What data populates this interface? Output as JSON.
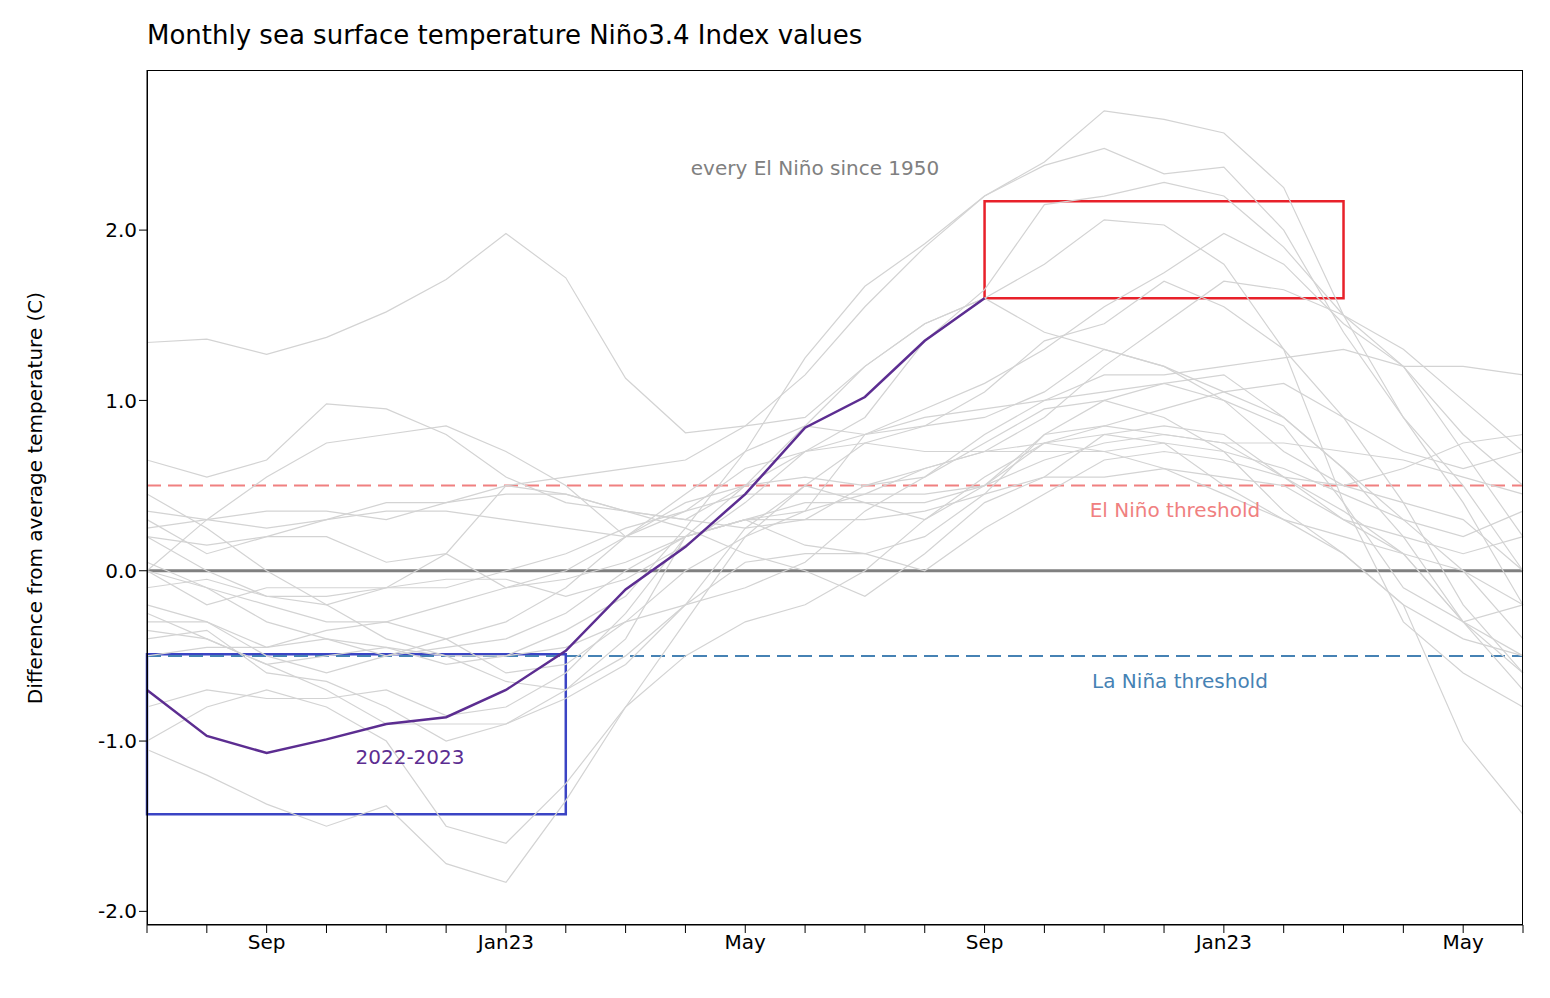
{
  "chart_data": {
    "type": "line",
    "title": "Monthly sea surface temperature Niño3.4 Index values",
    "y_label": "Difference from average temperature (C)",
    "categories": [
      null,
      null,
      "Sep",
      null,
      null,
      null,
      "Jan23",
      null,
      null,
      null,
      "May",
      null,
      null,
      null,
      "Sep",
      null,
      null,
      null,
      "Jan23",
      null,
      null,
      null,
      "May",
      null
    ],
    "ylim": [
      -2.08,
      2.94
    ],
    "yticks": [
      {
        "value": -2,
        "label": "-2.0"
      },
      {
        "value": -1,
        "label": "-1.0"
      },
      {
        "value": 0,
        "label": "0.0"
      },
      {
        "value": 1,
        "label": "1.0"
      },
      {
        "value": 2,
        "label": "2.0"
      }
    ],
    "annotations": [
      {
        "text": "every El Niño since 1950",
        "color": "#808080"
      }
    ],
    "reference_lines": [
      {
        "value": 0,
        "color": "#808080",
        "line_style": "solid"
      },
      {
        "value": 0.5,
        "label": "El Niño threshold",
        "color": "#f08080",
        "line_style": "dashed"
      },
      {
        "value": -0.5,
        "label": "La Niña threshold",
        "color": "#4682b4",
        "line_style": "dashed"
      }
    ],
    "boxes": [
      {
        "x": [
          0,
          7
        ],
        "y": [
          -1.43,
          -0.49
        ],
        "color": "#3b44c4"
      },
      {
        "x": [
          14,
          20
        ],
        "y": [
          1.6,
          2.17
        ],
        "color": "#e8212a"
      }
    ],
    "series": [
      {
        "color": "#d3d3d3",
        "values": [
          1.34,
          1.36,
          1.27,
          1.37,
          1.52,
          1.71,
          1.98,
          1.72,
          1.13,
          0.81,
          0.85,
          0.9,
          1.2,
          1.45,
          1.6,
          1.4,
          1.3,
          1.2,
          1.05,
          0.9,
          0.6,
          0.2,
          -0.3,
          -0.6
        ]
      },
      {
        "color": "#d3d3d3",
        "values": [
          -0.5,
          -0.45,
          -0.45,
          -0.4,
          -0.45,
          -0.5,
          -0.5,
          -0.35,
          -0.15,
          0.25,
          0.7,
          1.25,
          1.67,
          1.92,
          2.2,
          2.4,
          2.7,
          2.65,
          2.57,
          2.25,
          1.5,
          0.9,
          0.4,
          -0.2
        ]
      },
      {
        "color": "#d3d3d3",
        "values": [
          0.2,
          0.0,
          -0.15,
          -0.2,
          -0.1,
          0.1,
          0.5,
          0.55,
          0.6,
          0.65,
          0.85,
          1.15,
          1.55,
          1.9,
          2.2,
          2.38,
          2.48,
          2.33,
          2.37,
          2.0,
          1.4,
          0.9,
          0.5,
          0.0
        ]
      },
      {
        "color": "#d3d3d3",
        "values": [
          0.0,
          -0.2,
          -0.1,
          -0.1,
          -0.1,
          -0.1,
          0.0,
          0.1,
          0.25,
          0.35,
          0.6,
          0.7,
          0.9,
          1.35,
          1.65,
          2.15,
          2.2,
          2.28,
          2.2,
          1.9,
          1.5,
          1.2,
          0.7,
          0.2
        ]
      },
      {
        "color": "#d3d3d3",
        "values": [
          -0.4,
          -0.35,
          -0.6,
          -0.65,
          -0.8,
          -1.0,
          -0.9,
          -0.7,
          -0.4,
          0.2,
          0.5,
          0.85,
          1.2,
          1.45,
          1.6,
          1.8,
          2.06,
          2.03,
          1.8,
          1.3,
          0.4,
          -0.3,
          -0.6,
          -0.8
        ]
      },
      {
        "color": "#d3d3d3",
        "values": [
          -0.2,
          -0.3,
          -0.5,
          -0.6,
          -0.5,
          -0.4,
          -0.3,
          -0.1,
          0.2,
          0.45,
          0.7,
          0.85,
          0.8,
          0.95,
          1.1,
          1.3,
          1.55,
          1.75,
          1.98,
          1.8,
          1.45,
          1.2,
          0.8,
          0.5
        ]
      },
      {
        "color": "#d3d3d3",
        "values": [
          0.35,
          0.3,
          0.25,
          0.3,
          0.4,
          0.4,
          0.45,
          0.45,
          0.35,
          0.3,
          0.5,
          0.7,
          0.75,
          0.7,
          0.7,
          0.9,
          1.2,
          1.45,
          1.7,
          1.65,
          1.5,
          1.3,
          1.0,
          0.7
        ]
      },
      {
        "color": "#d3d3d3",
        "values": [
          -1.05,
          -1.2,
          -1.37,
          -1.5,
          -1.38,
          -1.72,
          -1.83,
          -1.35,
          -0.8,
          -0.3,
          0.2,
          0.5,
          0.75,
          0.85,
          1.05,
          1.35,
          1.45,
          1.7,
          1.55,
          1.3,
          0.9,
          0.4,
          -0.2,
          -0.6
        ]
      },
      {
        "color": "#d3d3d3",
        "values": [
          0.45,
          0.25,
          0.0,
          -0.2,
          -0.4,
          -0.5,
          -0.65,
          -0.7,
          -0.5,
          -0.2,
          0.25,
          0.5,
          0.4,
          0.3,
          0.5,
          0.75,
          0.85,
          0.95,
          1.05,
          1.1,
          0.9,
          0.7,
          0.6,
          0.7
        ]
      },
      {
        "color": "#d3d3d3",
        "values": [
          -0.1,
          -0.05,
          -0.15,
          -0.15,
          -0.1,
          -0.05,
          -0.05,
          -0.15,
          -0.05,
          0.15,
          0.4,
          0.7,
          0.8,
          0.85,
          0.9,
          1.05,
          1.3,
          1.2,
          1.0,
          0.85,
          0.4,
          -0.1,
          -0.3,
          -0.2
        ]
      },
      {
        "color": "#d3d3d3",
        "values": [
          -0.3,
          -0.3,
          -0.45,
          -0.35,
          -0.3,
          -0.4,
          -0.6,
          -0.55,
          -0.3,
          0.0,
          0.2,
          0.35,
          0.8,
          0.9,
          0.95,
          1.0,
          1.05,
          1.1,
          1.15,
          0.9,
          0.6,
          0.3,
          0.0,
          -0.4
        ]
      },
      {
        "color": "#d3d3d3",
        "values": [
          0.3,
          0.1,
          0.2,
          0.2,
          0.05,
          0.1,
          -0.1,
          0.0,
          0.2,
          0.4,
          0.5,
          0.55,
          0.5,
          0.55,
          0.75,
          0.95,
          1.0,
          0.9,
          0.7,
          0.35,
          0.1,
          -0.2,
          -0.4,
          -0.5
        ]
      },
      {
        "color": "#d3d3d3",
        "values": [
          -0.25,
          -0.4,
          -0.55,
          -0.5,
          -0.45,
          -0.55,
          -0.5,
          -0.45,
          -0.3,
          -0.2,
          -0.1,
          0.05,
          0.35,
          0.55,
          0.8,
          1.0,
          1.15,
          1.15,
          1.2,
          1.25,
          1.3,
          1.2,
          1.2,
          1.15
        ]
      },
      {
        "color": "#d3d3d3",
        "values": [
          0.2,
          0.15,
          0.2,
          0.3,
          0.35,
          0.35,
          0.3,
          0.25,
          0.2,
          0.35,
          0.45,
          0.45,
          0.45,
          0.45,
          0.5,
          0.8,
          1.0,
          1.1,
          1.0,
          0.7,
          0.5,
          0.4,
          0.3,
          0.0
        ]
      },
      {
        "color": "#d3d3d3",
        "values": [
          0.05,
          -0.1,
          -0.2,
          -0.3,
          -0.3,
          -0.2,
          -0.1,
          -0.05,
          0.05,
          0.2,
          0.3,
          0.3,
          0.5,
          0.6,
          0.7,
          0.7,
          0.7,
          0.75,
          0.7,
          0.6,
          0.45,
          0.3,
          0.2,
          0.35
        ]
      },
      {
        "color": "#d3d3d3",
        "values": [
          -1.0,
          -0.8,
          -0.7,
          -0.8,
          -1.0,
          -1.5,
          -1.6,
          -1.25,
          -0.8,
          -0.5,
          -0.3,
          -0.2,
          0.0,
          0.3,
          0.55,
          0.75,
          0.8,
          0.85,
          0.8,
          0.55,
          0.3,
          0.2,
          0.1,
          0.2
        ]
      },
      {
        "color": "#d3d3d3",
        "values": [
          0.0,
          0.3,
          0.55,
          0.75,
          0.8,
          0.85,
          0.7,
          0.5,
          0.2,
          0.2,
          0.3,
          0.4,
          0.4,
          0.4,
          0.5,
          0.65,
          0.75,
          0.8,
          0.75,
          0.55,
          0.35,
          0.1,
          -0.3,
          -0.5
        ]
      },
      {
        "color": "#d3d3d3",
        "values": [
          -0.35,
          -0.4,
          -0.55,
          -0.7,
          -0.9,
          -0.9,
          -0.9,
          -0.75,
          -0.55,
          -0.2,
          0.05,
          0.1,
          0.1,
          0.2,
          0.45,
          0.8,
          0.85,
          0.8,
          0.75,
          0.75,
          0.7,
          0.65,
          0.55,
          0.45
        ]
      },
      {
        "color": "#d3d3d3",
        "values": [
          0.0,
          -0.1,
          -0.3,
          -0.4,
          -0.5,
          -0.45,
          -0.4,
          -0.25,
          0.0,
          0.2,
          0.3,
          0.15,
          0.1,
          0.0,
          0.25,
          0.45,
          0.65,
          0.7,
          0.65,
          0.55,
          0.5,
          0.6,
          0.75,
          0.8
        ]
      },
      {
        "color": "#d3d3d3",
        "values": [
          -0.8,
          -0.7,
          -0.75,
          -0.75,
          -0.7,
          -0.85,
          -0.8,
          -0.6,
          -0.25,
          0.2,
          0.3,
          0.35,
          0.45,
          0.6,
          0.7,
          0.75,
          0.7,
          0.6,
          0.45,
          0.3,
          0.2,
          0.1,
          0.0,
          -0.2
        ]
      },
      {
        "color": "#d3d3d3",
        "values": [
          0.65,
          0.55,
          0.65,
          0.98,
          0.95,
          0.8,
          0.55,
          0.4,
          0.35,
          0.25,
          0.1,
          0.0,
          -0.15,
          0.1,
          0.4,
          0.55,
          0.55,
          0.6,
          0.55,
          0.5,
          0.3,
          0.1,
          -0.3,
          -0.7
        ]
      },
      {
        "color": "#d3d3d3",
        "values": [
          0.25,
          0.3,
          0.35,
          0.35,
          0.3,
          0.4,
          0.5,
          0.45,
          0.35,
          0.3,
          0.25,
          0.3,
          0.3,
          0.35,
          0.45,
          0.55,
          0.8,
          0.75,
          0.5,
          0.3,
          0.1,
          -0.2,
          -1.0,
          -1.43
        ]
      },
      {
        "name": "2022-2023",
        "color": "#5c2d91",
        "values": [
          -0.7,
          -0.97,
          -1.07,
          -0.99,
          -0.9,
          -0.86,
          -0.7,
          -0.47,
          -0.11,
          0.14,
          0.45,
          0.84,
          1.02,
          1.35,
          1.6,
          null,
          null,
          null,
          null,
          null,
          null,
          null,
          null,
          null
        ]
      }
    ]
  }
}
